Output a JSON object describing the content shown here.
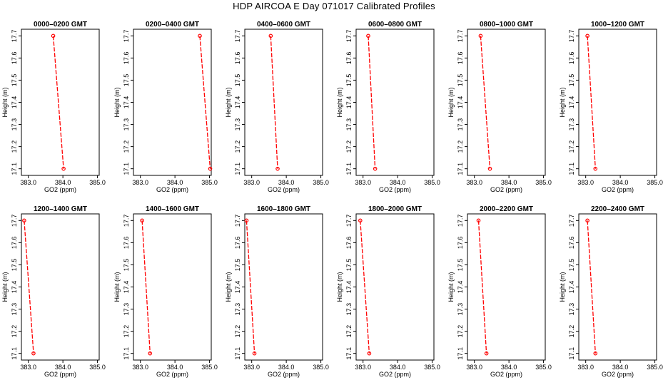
{
  "title": "HDP  AIRCOA E  Day 071017  Calibrated Profiles",
  "colors": {
    "series": "#ff0000",
    "axis": "#000000",
    "background": "#ffffff"
  },
  "chart_data": {
    "type": "line",
    "xlabel": "GO2 (ppm)",
    "ylabel": "Height (m)",
    "xlim": [
      382.8,
      385.05
    ],
    "ylim": [
      17.07,
      17.73
    ],
    "xticks": [
      383.0,
      384.0,
      385.0
    ],
    "xtick_labels": [
      "383.0",
      "384.0",
      "385.0"
    ],
    "yticks": [
      17.1,
      17.2,
      17.3,
      17.4,
      17.5,
      17.6,
      17.7
    ],
    "ytick_labels": [
      "17.1",
      "17.2",
      "17.3",
      "17.4",
      "17.5",
      "17.6",
      "17.7"
    ],
    "panels": [
      {
        "title": "0000–0200 GMT",
        "points": [
          {
            "x": 383.72,
            "y": 17.7
          },
          {
            "x": 384.02,
            "y": 17.1
          }
        ]
      },
      {
        "title": "0200–0400 GMT",
        "points": [
          {
            "x": 384.72,
            "y": 17.7
          },
          {
            "x": 385.02,
            "y": 17.1
          }
        ]
      },
      {
        "title": "0400–0600 GMT",
        "points": [
          {
            "x": 383.55,
            "y": 17.7
          },
          {
            "x": 383.75,
            "y": 17.1
          }
        ]
      },
      {
        "title": "0600–0800 GMT",
        "points": [
          {
            "x": 383.15,
            "y": 17.7
          },
          {
            "x": 383.35,
            "y": 17.1
          }
        ]
      },
      {
        "title": "0800–1000 GMT",
        "points": [
          {
            "x": 383.18,
            "y": 17.7
          },
          {
            "x": 383.45,
            "y": 17.1
          }
        ]
      },
      {
        "title": "1000–1200 GMT",
        "points": [
          {
            "x": 383.05,
            "y": 17.7
          },
          {
            "x": 383.28,
            "y": 17.1
          }
        ]
      },
      {
        "title": "1200–1400 GMT",
        "points": [
          {
            "x": 382.88,
            "y": 17.7
          },
          {
            "x": 383.15,
            "y": 17.1
          }
        ]
      },
      {
        "title": "1400–1600 GMT",
        "points": [
          {
            "x": 383.05,
            "y": 17.7
          },
          {
            "x": 383.28,
            "y": 17.1
          }
        ]
      },
      {
        "title": "1600–1800 GMT",
        "points": [
          {
            "x": 382.85,
            "y": 17.7
          },
          {
            "x": 383.08,
            "y": 17.1
          }
        ]
      },
      {
        "title": "1800–2000 GMT",
        "points": [
          {
            "x": 382.92,
            "y": 17.7
          },
          {
            "x": 383.18,
            "y": 17.1
          }
        ]
      },
      {
        "title": "2000–2200 GMT",
        "points": [
          {
            "x": 383.12,
            "y": 17.7
          },
          {
            "x": 383.35,
            "y": 17.1
          }
        ]
      },
      {
        "title": "2200–2400 GMT",
        "points": [
          {
            "x": 383.05,
            "y": 17.7
          },
          {
            "x": 383.28,
            "y": 17.1
          }
        ]
      }
    ]
  }
}
